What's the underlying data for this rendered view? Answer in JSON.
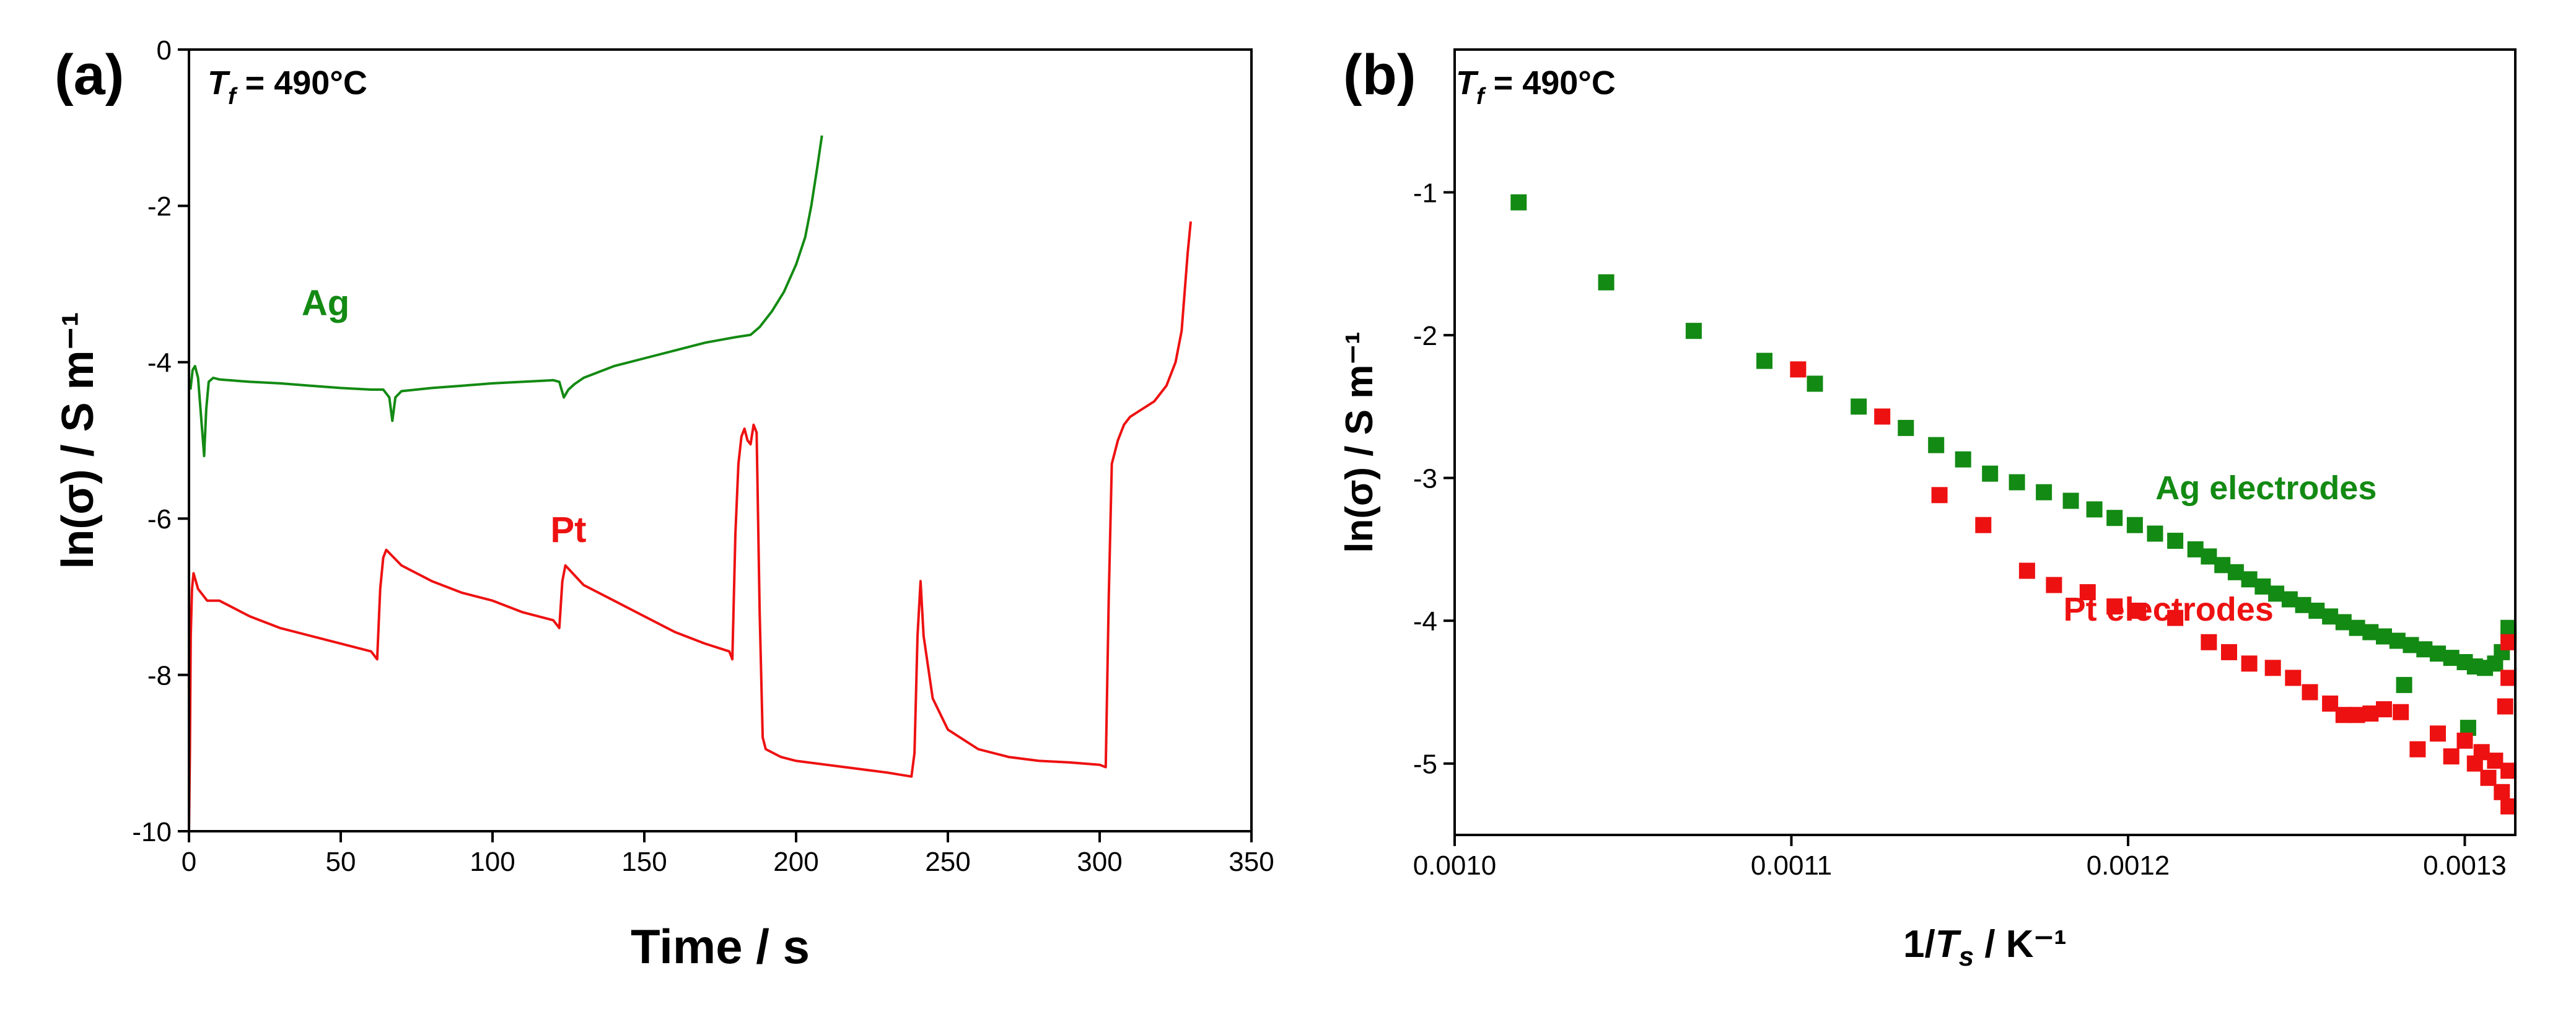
{
  "colors": {
    "ag": "#138a13",
    "pt": "#ee1111",
    "axis": "#000000"
  },
  "chart_data": [
    {
      "type": "line",
      "panel_label": "(a)",
      "annotation": {
        "symbol": "T",
        "subscript": "f",
        "rest": " = 490°C"
      },
      "xlabel": "Time / s",
      "ylabel": "ln(σ) / S m⁻¹",
      "xlim": [
        0,
        350
      ],
      "ylim": [
        -10,
        0
      ],
      "x_ticks": [
        0,
        50,
        100,
        150,
        200,
        250,
        300,
        350
      ],
      "y_ticks": [
        0,
        -2,
        -4,
        -6,
        -8,
        -10
      ],
      "series": [
        {
          "name": "Ag",
          "color": "#138a13",
          "points": [
            [
              0.5,
              -4.35
            ],
            [
              1.2,
              -4.1
            ],
            [
              2,
              -4.05
            ],
            [
              3,
              -4.2
            ],
            [
              4,
              -4.7
            ],
            [
              5,
              -5.2
            ],
            [
              5.7,
              -4.6
            ],
            [
              6.5,
              -4.25
            ],
            [
              8,
              -4.2
            ],
            [
              10,
              -4.22
            ],
            [
              20,
              -4.25
            ],
            [
              30,
              -4.27
            ],
            [
              40,
              -4.3
            ],
            [
              50,
              -4.33
            ],
            [
              60,
              -4.35
            ],
            [
              64,
              -4.35
            ],
            [
              66,
              -4.45
            ],
            [
              67,
              -4.75
            ],
            [
              68,
              -4.45
            ],
            [
              70,
              -4.37
            ],
            [
              80,
              -4.33
            ],
            [
              90,
              -4.3
            ],
            [
              100,
              -4.27
            ],
            [
              110,
              -4.25
            ],
            [
              120,
              -4.23
            ],
            [
              122,
              -4.25
            ],
            [
              123.5,
              -4.45
            ],
            [
              125,
              -4.35
            ],
            [
              127,
              -4.28
            ],
            [
              130,
              -4.2
            ],
            [
              140,
              -4.05
            ],
            [
              150,
              -3.95
            ],
            [
              160,
              -3.85
            ],
            [
              170,
              -3.75
            ],
            [
              180,
              -3.68
            ],
            [
              185,
              -3.65
            ],
            [
              188,
              -3.55
            ],
            [
              192,
              -3.35
            ],
            [
              196,
              -3.1
            ],
            [
              200,
              -2.75
            ],
            [
              203,
              -2.4
            ],
            [
              205,
              -2.0
            ],
            [
              207,
              -1.5
            ],
            [
              208.5,
              -1.1
            ]
          ]
        },
        {
          "name": "Pt",
          "color": "#ee1111",
          "points": [
            [
              0,
              -10
            ],
            [
              0.3,
              -9.0
            ],
            [
              0.6,
              -7.5
            ],
            [
              1,
              -6.9
            ],
            [
              1.5,
              -6.7
            ],
            [
              3,
              -6.9
            ],
            [
              6,
              -7.05
            ],
            [
              10,
              -7.05
            ],
            [
              15,
              -7.15
            ],
            [
              20,
              -7.25
            ],
            [
              30,
              -7.4
            ],
            [
              40,
              -7.5
            ],
            [
              50,
              -7.6
            ],
            [
              60,
              -7.7
            ],
            [
              62,
              -7.8
            ],
            [
              63,
              -6.9
            ],
            [
              64,
              -6.5
            ],
            [
              65,
              -6.4
            ],
            [
              70,
              -6.6
            ],
            [
              80,
              -6.8
            ],
            [
              90,
              -6.95
            ],
            [
              100,
              -7.05
            ],
            [
              110,
              -7.2
            ],
            [
              120,
              -7.3
            ],
            [
              122,
              -7.4
            ],
            [
              123,
              -6.8
            ],
            [
              124,
              -6.6
            ],
            [
              130,
              -6.85
            ],
            [
              140,
              -7.05
            ],
            [
              150,
              -7.25
            ],
            [
              160,
              -7.45
            ],
            [
              170,
              -7.6
            ],
            [
              178,
              -7.7
            ],
            [
              179,
              -7.8
            ],
            [
              180,
              -6.2
            ],
            [
              181,
              -5.3
            ],
            [
              182,
              -4.95
            ],
            [
              183,
              -4.85
            ],
            [
              184,
              -5.0
            ],
            [
              185,
              -5.05
            ],
            [
              186,
              -4.8
            ],
            [
              187,
              -4.9
            ],
            [
              188,
              -7.2
            ],
            [
              189,
              -8.8
            ],
            [
              190,
              -8.95
            ],
            [
              195,
              -9.05
            ],
            [
              200,
              -9.1
            ],
            [
              210,
              -9.15
            ],
            [
              220,
              -9.2
            ],
            [
              230,
              -9.25
            ],
            [
              238,
              -9.3
            ],
            [
              239,
              -9.0
            ],
            [
              240,
              -7.5
            ],
            [
              241,
              -6.8
            ],
            [
              242,
              -7.5
            ],
            [
              245,
              -8.3
            ],
            [
              250,
              -8.7
            ],
            [
              260,
              -8.95
            ],
            [
              270,
              -9.05
            ],
            [
              280,
              -9.1
            ],
            [
              290,
              -9.12
            ],
            [
              300,
              -9.15
            ],
            [
              302,
              -9.18
            ],
            [
              303,
              -7.0
            ],
            [
              304,
              -5.3
            ],
            [
              306,
              -5.0
            ],
            [
              308,
              -4.8
            ],
            [
              310,
              -4.7
            ],
            [
              314,
              -4.6
            ],
            [
              318,
              -4.5
            ],
            [
              322,
              -4.3
            ],
            [
              325,
              -4.0
            ],
            [
              327,
              -3.6
            ],
            [
              328,
              -3.1
            ],
            [
              329,
              -2.6
            ],
            [
              330,
              -2.2
            ]
          ]
        }
      ],
      "series_labels": [
        {
          "text": "Ag",
          "color": "#138a13",
          "x": 45,
          "y": -3.4
        },
        {
          "text": "Pt",
          "color": "#ee1111",
          "x": 125,
          "y": -6.3
        }
      ]
    },
    {
      "type": "scatter",
      "panel_label": "(b)",
      "annotation": {
        "symbol": "T",
        "subscript": "f",
        "rest": " = 490°C"
      },
      "xlabel": {
        "prefix": "1/",
        "symbol": "T",
        "subscript": "s",
        "suffix": " / K⁻¹"
      },
      "ylabel": "ln(σ) / S m⁻¹",
      "xlim": [
        0.001,
        0.001315
      ],
      "ylim": [
        -5.5,
        0
      ],
      "x_ticks": [
        "0.0010",
        "0.0011",
        "0.0012",
        "0.0013"
      ],
      "y_ticks": [
        -1,
        -2,
        -3,
        -4,
        -5
      ],
      "series": [
        {
          "name": "Ag electrodes",
          "color": "#138a13",
          "points": [
            [
              0.001019,
              -1.07
            ],
            [
              0.001045,
              -1.63
            ],
            [
              0.001071,
              -1.97
            ],
            [
              0.001092,
              -2.18
            ],
            [
              0.001107,
              -2.34
            ],
            [
              0.00112,
              -2.5
            ],
            [
              0.001134,
              -2.65
            ],
            [
              0.001143,
              -2.77
            ],
            [
              0.001151,
              -2.87
            ],
            [
              0.001159,
              -2.97
            ],
            [
              0.001167,
              -3.03
            ],
            [
              0.001175,
              -3.1
            ],
            [
              0.001183,
              -3.16
            ],
            [
              0.00119,
              -3.22
            ],
            [
              0.001196,
              -3.28
            ],
            [
              0.001202,
              -3.33
            ],
            [
              0.001208,
              -3.39
            ],
            [
              0.001214,
              -3.44
            ],
            [
              0.00122,
              -3.5
            ],
            [
              0.001224,
              -3.55
            ],
            [
              0.001228,
              -3.61
            ],
            [
              0.001232,
              -3.66
            ],
            [
              0.001236,
              -3.71
            ],
            [
              0.00124,
              -3.76
            ],
            [
              0.001244,
              -3.81
            ],
            [
              0.001248,
              -3.85
            ],
            [
              0.001252,
              -3.89
            ],
            [
              0.001256,
              -3.93
            ],
            [
              0.00126,
              -3.97
            ],
            [
              0.001264,
              -4.01
            ],
            [
              0.001268,
              -4.05
            ],
            [
              0.001272,
              -4.08
            ],
            [
              0.001276,
              -4.11
            ],
            [
              0.00128,
              -4.14
            ],
            [
              0.001284,
              -4.17
            ],
            [
              0.001288,
              -4.2
            ],
            [
              0.001292,
              -4.23
            ],
            [
              0.001296,
              -4.26
            ],
            [
              0.0013,
              -4.29
            ],
            [
              0.001303,
              -4.32
            ],
            [
              0.001306,
              -4.33
            ],
            [
              0.001309,
              -4.3
            ],
            [
              0.001311,
              -4.22
            ],
            [
              0.001313,
              -4.1
            ],
            [
              0.001313,
              -4.05
            ],
            [
              0.001282,
              -4.45
            ],
            [
              0.001301,
              -4.75
            ]
          ]
        },
        {
          "name": "Pt electrodes",
          "color": "#ee1111",
          "points": [
            [
              0.001102,
              -2.24
            ],
            [
              0.001127,
              -2.57
            ],
            [
              0.001144,
              -3.12
            ],
            [
              0.001157,
              -3.33
            ],
            [
              0.00117,
              -3.65
            ],
            [
              0.001178,
              -3.75
            ],
            [
              0.001188,
              -3.8
            ],
            [
              0.001196,
              -3.9
            ],
            [
              0.001203,
              -3.93
            ],
            [
              0.001214,
              -3.98
            ],
            [
              0.001224,
              -4.15
            ],
            [
              0.00123,
              -4.22
            ],
            [
              0.001236,
              -4.3
            ],
            [
              0.001243,
              -4.33
            ],
            [
              0.001249,
              -4.4
            ],
            [
              0.001254,
              -4.5
            ],
            [
              0.00126,
              -4.58
            ],
            [
              0.001264,
              -4.66
            ],
            [
              0.001268,
              -4.66
            ],
            [
              0.001272,
              -4.65
            ],
            [
              0.001276,
              -4.62
            ],
            [
              0.001281,
              -4.64
            ],
            [
              0.001286,
              -4.9
            ],
            [
              0.001292,
              -4.79
            ],
            [
              0.001296,
              -4.95
            ],
            [
              0.0013,
              -4.84
            ],
            [
              0.001303,
              -5.0
            ],
            [
              0.001305,
              -4.92
            ],
            [
              0.001307,
              -5.1
            ],
            [
              0.001309,
              -4.98
            ],
            [
              0.001311,
              -5.2
            ],
            [
              0.001312,
              -4.6
            ],
            [
              0.001313,
              -4.4
            ],
            [
              0.001313,
              -5.05
            ],
            [
              0.001313,
              -5.3
            ],
            [
              0.001313,
              -4.15
            ]
          ]
        }
      ],
      "series_labels": [
        {
          "text": "Ag electrodes",
          "color": "#138a13",
          "x": 0.001241,
          "y": -3.15
        },
        {
          "text": "Pt electrodes",
          "color": "#ee1111",
          "x": 0.001212,
          "y": -4.0
        }
      ]
    }
  ]
}
